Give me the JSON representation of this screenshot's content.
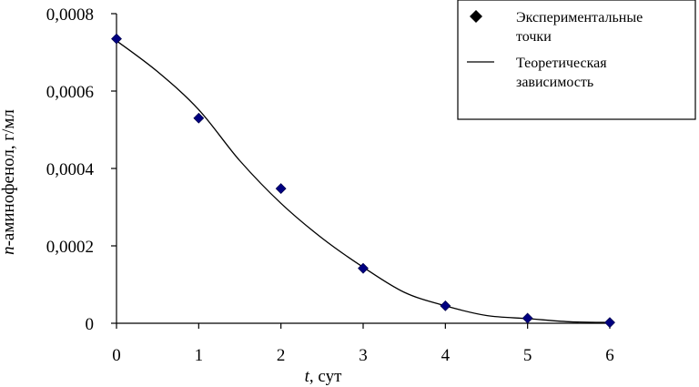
{
  "chart_data": {
    "type": "scatter",
    "xlabel_var": "t",
    "xlabel_unit": ", сут",
    "ylabel_var": "n",
    "ylabel_unit": "-аминофенол, г/мл",
    "xlim": [
      0,
      6
    ],
    "ylim": [
      0,
      0.0008
    ],
    "x_ticks": [
      0,
      1,
      2,
      3,
      4,
      5,
      6
    ],
    "x_tick_labels": [
      "0",
      "1",
      "2",
      "3",
      "4",
      "5",
      "6"
    ],
    "y_ticks": [
      0,
      0.0002,
      0.0004,
      0.0006,
      0.0008
    ],
    "y_tick_labels": [
      "0",
      "0,0002",
      "0,0004",
      "0,0006",
      "0,0008"
    ],
    "grid": false,
    "legend_position": "top-right",
    "series": [
      {
        "name": "Экспериментальные точки",
        "kind": "markers",
        "marker": "diamond",
        "color": "#000080",
        "x": [
          0,
          1,
          2,
          3,
          4,
          5,
          6
        ],
        "y": [
          0.000735,
          0.00053,
          0.000348,
          0.000142,
          4.5e-05,
          1.3e-05,
          2e-06
        ]
      },
      {
        "name": "Теоретическая зависимость",
        "kind": "line",
        "color": "#000000",
        "x": [
          0,
          0.5,
          1,
          1.5,
          2,
          2.5,
          3,
          3.5,
          4,
          4.5,
          5,
          5.5,
          6
        ],
        "y": [
          0.00073,
          0.00065,
          0.000552,
          0.00042,
          0.00031,
          0.00022,
          0.000145,
          8e-05,
          4.5e-05,
          2e-05,
          1.2e-05,
          4e-06,
          2e-06
        ]
      }
    ],
    "legend": {
      "markers_line1": "Экспериментальные",
      "markers_line2": "точки",
      "line_line1": "Теоретическая",
      "line_line2": "зависимость"
    }
  }
}
